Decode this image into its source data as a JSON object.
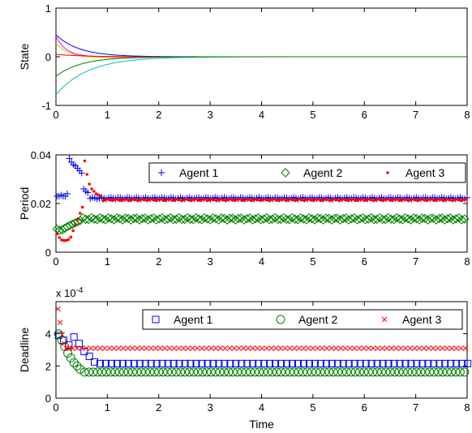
{
  "chart_data": [
    {
      "type": "line",
      "title": "",
      "xlabel": "",
      "ylabel": "State",
      "xlim": [
        0,
        8
      ],
      "ylim": [
        -1,
        1
      ],
      "xticks": [
        "0",
        "1",
        "2",
        "3",
        "4",
        "5",
        "6",
        "7",
        "8"
      ],
      "yticks": [
        "-1",
        "0",
        "1"
      ],
      "grid": false,
      "series": [
        {
          "color": "#0000ff",
          "x0": 0.45,
          "rate": 2.2
        },
        {
          "color": "#ff00ff",
          "x0": 0.42,
          "rate": 5.0
        },
        {
          "color": "#cccc00",
          "x0": 0.28,
          "rate": 3.5,
          "undershoot": -0.07
        },
        {
          "color": "#ff0000",
          "x0": 0.05,
          "rate": 2.0
        },
        {
          "color": "#00bfbf",
          "x0": -0.78,
          "rate": 1.6
        },
        {
          "color": "#008000",
          "x0": -0.4,
          "rate": 2.0
        }
      ]
    },
    {
      "type": "scatter",
      "title": "",
      "xlabel": "",
      "ylabel": "Period",
      "xlim": [
        0,
        8
      ],
      "ylim": [
        0,
        0.04
      ],
      "xticks": [
        "0",
        "1",
        "2",
        "3",
        "4",
        "5",
        "6",
        "7",
        "8"
      ],
      "yticks": [
        "0",
        "0.02",
        "0.04"
      ],
      "legend_position": "top-right",
      "series": [
        {
          "name": "Agent 1",
          "marker": "plus",
          "color": "#0000ff",
          "early": [
            0.023,
            0.023,
            0.0235,
            0.023,
            0.023,
            0.024,
            0.0385,
            0.037,
            0.036,
            0.0355,
            0.0345,
            0.0335,
            0.0325,
            0.026,
            0.025,
            0.0245
          ],
          "steady": 0.0222
        },
        {
          "name": "Agent 2",
          "marker": "diamond",
          "color": "#008000",
          "early": [
            0.0095,
            0.009,
            0.0092,
            0.0098,
            0.0105,
            0.011,
            0.0115,
            0.012,
            0.0125,
            0.013
          ],
          "steady": 0.0137
        },
        {
          "name": "Agent 3",
          "marker": "dot",
          "color": "#ff0000",
          "early": [
            0.0075,
            0.006,
            0.005,
            0.0048,
            0.0048,
            0.0052,
            0.0062,
            0.0088,
            0.0115,
            0.0135,
            0.016,
            0.0185,
            0.0375,
            0.032,
            0.028,
            0.026,
            0.025,
            0.024,
            0.0235,
            0.023
          ],
          "steady": 0.0215
        }
      ]
    },
    {
      "type": "scatter",
      "title": "",
      "xlabel": "Time",
      "ylabel": "Deadline",
      "exponent_label": "x 10",
      "exponent_power": "-4",
      "xlim": [
        0,
        8
      ],
      "ylim": [
        0,
        0.0006
      ],
      "xticks": [
        "0",
        "1",
        "2",
        "3",
        "4",
        "5",
        "6",
        "7",
        "8"
      ],
      "yticks": [
        "0",
        "2",
        "4"
      ],
      "legend_position": "top-right",
      "series": [
        {
          "name": "Agent 1",
          "marker": "square",
          "color": "#0000ff",
          "points": [
            [
              0.05,
              0.00039
            ],
            [
              0.15,
              0.00036
            ],
            [
              0.25,
              0.00033
            ],
            [
              0.35,
              0.00038
            ],
            [
              0.45,
              0.00034
            ],
            [
              0.55,
              0.00029
            ],
            [
              0.65,
              0.00026
            ],
            [
              0.75,
              0.000225
            ]
          ],
          "steady": 0.000215,
          "step": 0.11
        },
        {
          "name": "Agent 2",
          "marker": "circle",
          "color": "#008000",
          "points": [
            [
              0.05,
              0.0004
            ],
            [
              0.11,
              0.00036
            ],
            [
              0.17,
              0.00032
            ],
            [
              0.23,
              0.00028
            ],
            [
              0.29,
              0.00025
            ],
            [
              0.35,
              0.00022
            ],
            [
              0.41,
              0.0002
            ],
            [
              0.47,
              0.00018
            ]
          ],
          "steady": 0.000162,
          "step": 0.085
        },
        {
          "name": "Agent 3",
          "marker": "cross",
          "color": "#ff0000",
          "points": [
            [
              0.04,
              0.000555
            ],
            [
              0.08,
              0.00047
            ],
            [
              0.12,
              0.000395
            ],
            [
              0.16,
              0.00034
            ],
            [
              0.2,
              0.00031
            ],
            [
              0.26,
              0.00031
            ],
            [
              0.32,
              0.00031
            ]
          ],
          "steady": 0.00031,
          "step": 0.09
        }
      ]
    }
  ]
}
